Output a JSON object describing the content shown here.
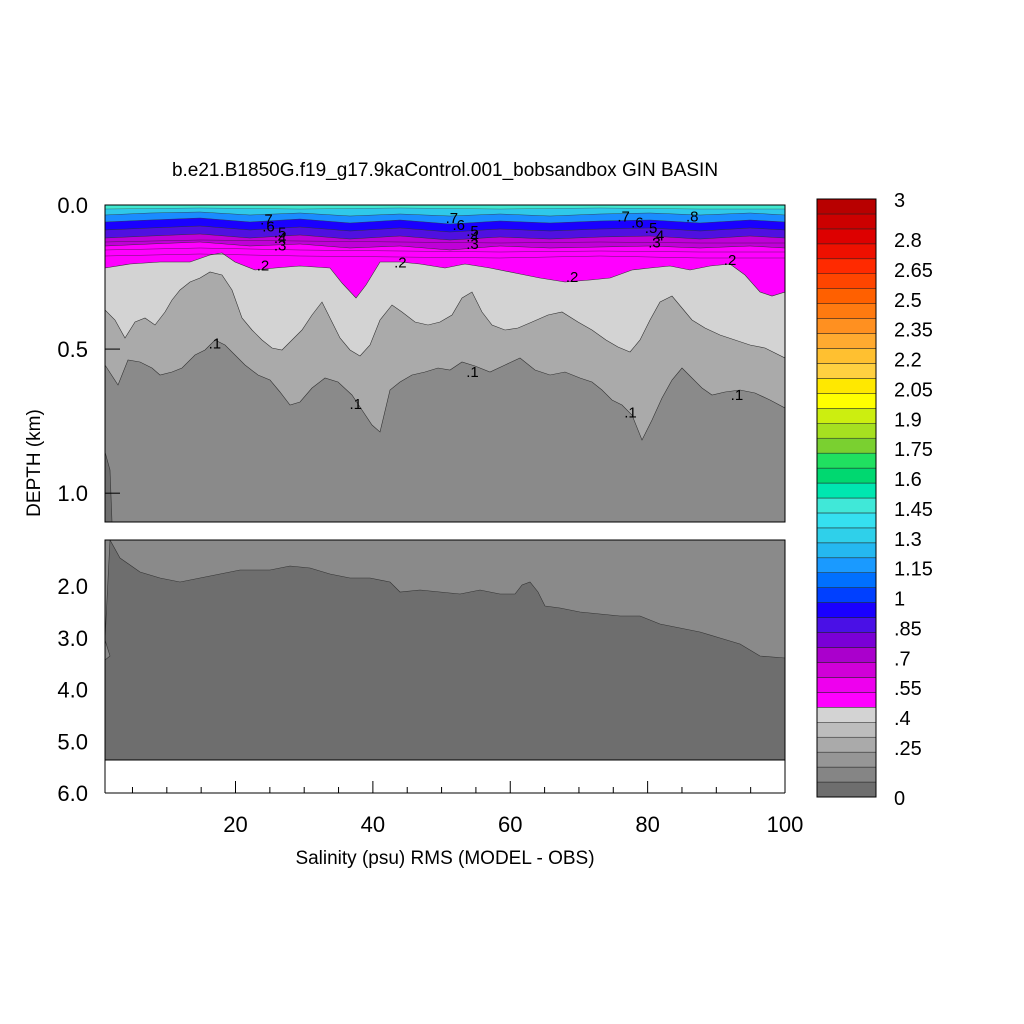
{
  "chart_data": {
    "type": "heatmap",
    "title": "b.e21.B1850G.f19_g17.9kaControl.001_bobsandbox GIN BASIN",
    "xlabel": "Salinity (psu) RMS (MODEL - OBS)",
    "ylabel": "DEPTH (km)",
    "x_range": [
      1,
      100
    ],
    "x_ticks": [
      "20",
      "40",
      "60",
      "80",
      "100"
    ],
    "upper_panel": {
      "depth_range_km": [
        0.0,
        1.1
      ],
      "y_ticks": [
        "0.0",
        "0.5",
        "1.0"
      ],
      "tick_values": [
        0.0,
        0.5,
        1.0
      ]
    },
    "lower_panel": {
      "depth_range_km": [
        1.1,
        6.0
      ],
      "y_ticks": [
        "2.0",
        "3.0",
        "4.0",
        "5.0",
        "6.0"
      ],
      "tick_values": [
        2.0,
        3.0,
        4.0,
        5.0,
        6.0
      ]
    },
    "colorbar": {
      "labels": [
        "3",
        "2.8",
        "2.65",
        "2.5",
        "2.35",
        "2.2",
        "2.05",
        "1.9",
        "1.75",
        "1.6",
        "1.45",
        "1.3",
        "1.15",
        "1",
        ".85",
        ".7",
        ".55",
        ".4",
        ".25",
        "0"
      ],
      "label_values": [
        3,
        2.8,
        2.65,
        2.5,
        2.35,
        2.2,
        2.05,
        1.9,
        1.75,
        1.6,
        1.45,
        1.3,
        1.15,
        1,
        0.85,
        0.7,
        0.55,
        0.4,
        0.25,
        0
      ],
      "colors_low_to_high": [
        "#6e6e6e",
        "#858585",
        "#969696",
        "#aaaaaa",
        "#bdbdbd",
        "#d3d3d3",
        "#ff00ff",
        "#ee00ee",
        "#d000d8",
        "#aa00cc",
        "#7a00d6",
        "#4a10e6",
        "#1a00ff",
        "#0040ff",
        "#0070ff",
        "#1a9aff",
        "#25b8f0",
        "#2fd0ea",
        "#35e0f0",
        "#40e8d8",
        "#00e6b0",
        "#00d870",
        "#20e060",
        "#7ad030",
        "#a6e020",
        "#ccee10",
        "#ffff00",
        "#ffe800",
        "#ffd040",
        "#ffc030",
        "#ffaa30",
        "#ff9020",
        "#ff7a10",
        "#ff6000",
        "#ff4500",
        "#ff2a00",
        "#ee1000",
        "#dd0000",
        "#cc0000",
        "#b80000"
      ]
    },
    "contour_labels": [
      {
        "text": ".7",
        "x": 24.5,
        "d": 0.05
      },
      {
        "text": ".6",
        "x": 24.8,
        "d": 0.075
      },
      {
        "text": ".5",
        "x": 26.5,
        "d": 0.095
      },
      {
        "text": ".4",
        "x": 26.5,
        "d": 0.115
      },
      {
        "text": ".3",
        "x": 26.5,
        "d": 0.14
      },
      {
        "text": ".2",
        "x": 24.0,
        "d": 0.21
      },
      {
        "text": ".7",
        "x": 51.5,
        "d": 0.045
      },
      {
        "text": ".6",
        "x": 52.5,
        "d": 0.07
      },
      {
        "text": ".5",
        "x": 54.5,
        "d": 0.09
      },
      {
        "text": ".4",
        "x": 54.5,
        "d": 0.11
      },
      {
        "text": ".3",
        "x": 54.5,
        "d": 0.135
      },
      {
        "text": ".2",
        "x": 44.0,
        "d": 0.2
      },
      {
        "text": ".7",
        "x": 76.5,
        "d": 0.04
      },
      {
        "text": ".6",
        "x": 78.5,
        "d": 0.06
      },
      {
        "text": ".5",
        "x": 80.5,
        "d": 0.08
      },
      {
        "text": ".4",
        "x": 81.5,
        "d": 0.105
      },
      {
        "text": ".3",
        "x": 81.0,
        "d": 0.13
      },
      {
        "text": ".8",
        "x": 86.5,
        "d": 0.04
      },
      {
        "text": ".2",
        "x": 69.0,
        "d": 0.25
      },
      {
        "text": ".2",
        "x": 92.0,
        "d": 0.19
      },
      {
        "text": ".1",
        "x": 17.0,
        "d": 0.48
      },
      {
        "text": ".1",
        "x": 54.5,
        "d": 0.58
      },
      {
        "text": ".1",
        "x": 37.5,
        "d": 0.69
      },
      {
        "text": ".1",
        "x": 77.5,
        "d": 0.72
      },
      {
        "text": ".1",
        "x": 93.0,
        "d": 0.66
      }
    ]
  }
}
